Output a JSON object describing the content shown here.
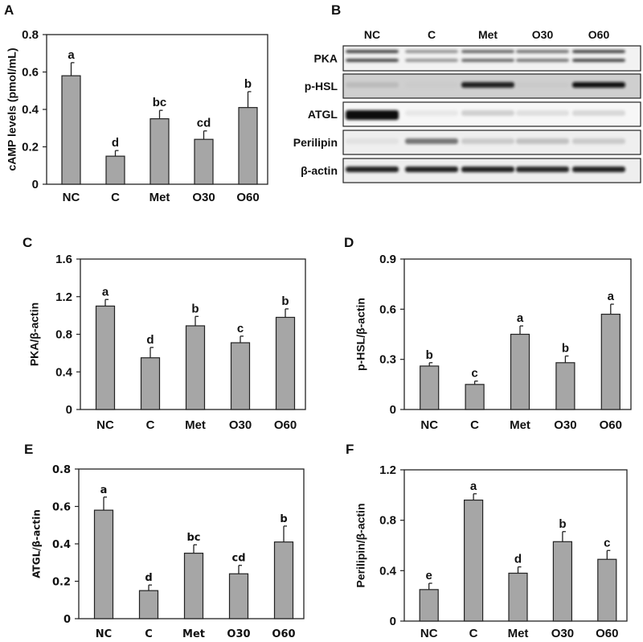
{
  "categories": [
    "NC",
    "C",
    "Met",
    "O30",
    "O60"
  ],
  "bar_color": "#a6a6a6",
  "chart_data": [
    {
      "panel": "A",
      "type": "bar",
      "ylabel": "cAMP levels (pmol/mL)",
      "ylim": [
        0,
        0.8
      ],
      "yticks": [
        "0",
        "0.2",
        "0.4",
        "0.6",
        "0.8"
      ],
      "categories": [
        "NC",
        "C",
        "Met",
        "O30",
        "O60"
      ],
      "values": [
        0.58,
        0.15,
        0.35,
        0.24,
        0.41
      ],
      "errors": [
        0.07,
        0.03,
        0.045,
        0.045,
        0.085
      ],
      "letters": [
        "a",
        "d",
        "bc",
        "cd",
        "b"
      ]
    },
    {
      "panel": "C",
      "type": "bar",
      "ylabel": "PKA/β-actin",
      "ylim": [
        0,
        1.6
      ],
      "yticks": [
        "0",
        "0.4",
        "0.8",
        "1.2",
        "1.6"
      ],
      "categories": [
        "NC",
        "C",
        "Met",
        "O30",
        "O60"
      ],
      "values": [
        1.1,
        0.55,
        0.89,
        0.71,
        0.98
      ],
      "errors": [
        0.07,
        0.11,
        0.1,
        0.07,
        0.09
      ],
      "letters": [
        "a",
        "d",
        "b",
        "c",
        "b"
      ]
    },
    {
      "panel": "D",
      "type": "bar",
      "ylabel": "p-HSL/β-actin",
      "ylim": [
        0,
        0.9
      ],
      "yticks": [
        "0",
        "0.3",
        "0.6",
        "0.9"
      ],
      "categories": [
        "NC",
        "C",
        "Met",
        "O30",
        "O60"
      ],
      "values": [
        0.26,
        0.15,
        0.45,
        0.28,
        0.57
      ],
      "errors": [
        0.02,
        0.02,
        0.05,
        0.04,
        0.06
      ],
      "letters": [
        "b",
        "c",
        "a",
        "b",
        "a"
      ]
    },
    {
      "panel": "E",
      "type": "bar",
      "ylabel": "ATGL/β-actin",
      "ylim": [
        0,
        0.8
      ],
      "yticks": [
        "0",
        "0.2",
        "0.4",
        "0.6",
        "0.8"
      ],
      "categories": [
        "NC",
        "C",
        "Met",
        "O30",
        "O60"
      ],
      "values": [
        0.58,
        0.15,
        0.35,
        0.24,
        0.41
      ],
      "errors": [
        0.07,
        0.03,
        0.045,
        0.045,
        0.085
      ],
      "letters": [
        "a",
        "d",
        "bc",
        "cd",
        "b"
      ]
    },
    {
      "panel": "F",
      "type": "bar",
      "ylabel": "Perilipin/β-actin",
      "ylim": [
        0,
        1.2
      ],
      "yticks": [
        "0",
        "0.4",
        "0.8",
        "1.2"
      ],
      "categories": [
        "NC",
        "C",
        "Met",
        "O30",
        "O60"
      ],
      "values": [
        0.25,
        0.96,
        0.38,
        0.63,
        0.49
      ],
      "errors": [
        0.05,
        0.05,
        0.05,
        0.08,
        0.07
      ],
      "letters": [
        "e",
        "a",
        "d",
        "b",
        "c"
      ]
    }
  ],
  "blot": {
    "panel": "B",
    "lanes": [
      "NC",
      "C",
      "Met",
      "O30",
      "O60"
    ],
    "rows": [
      {
        "label": "PKA",
        "intensity": [
          0.85,
          0.6,
          0.75,
          0.7,
          0.85
        ],
        "double_band": true
      },
      {
        "label": "p-HSL",
        "intensity": [
          0.3,
          0.05,
          0.95,
          0.08,
          0.98
        ],
        "double_band": false
      },
      {
        "label": "ATGL",
        "intensity": [
          1.0,
          0.08,
          0.35,
          0.25,
          0.3
        ],
        "double_band": false
      },
      {
        "label": "Perilipin",
        "intensity": [
          0.08,
          0.7,
          0.35,
          0.4,
          0.35
        ],
        "double_band": false
      },
      {
        "label": "β-actin",
        "intensity": [
          0.95,
          0.95,
          0.95,
          0.92,
          0.95
        ],
        "double_band": false
      }
    ]
  }
}
